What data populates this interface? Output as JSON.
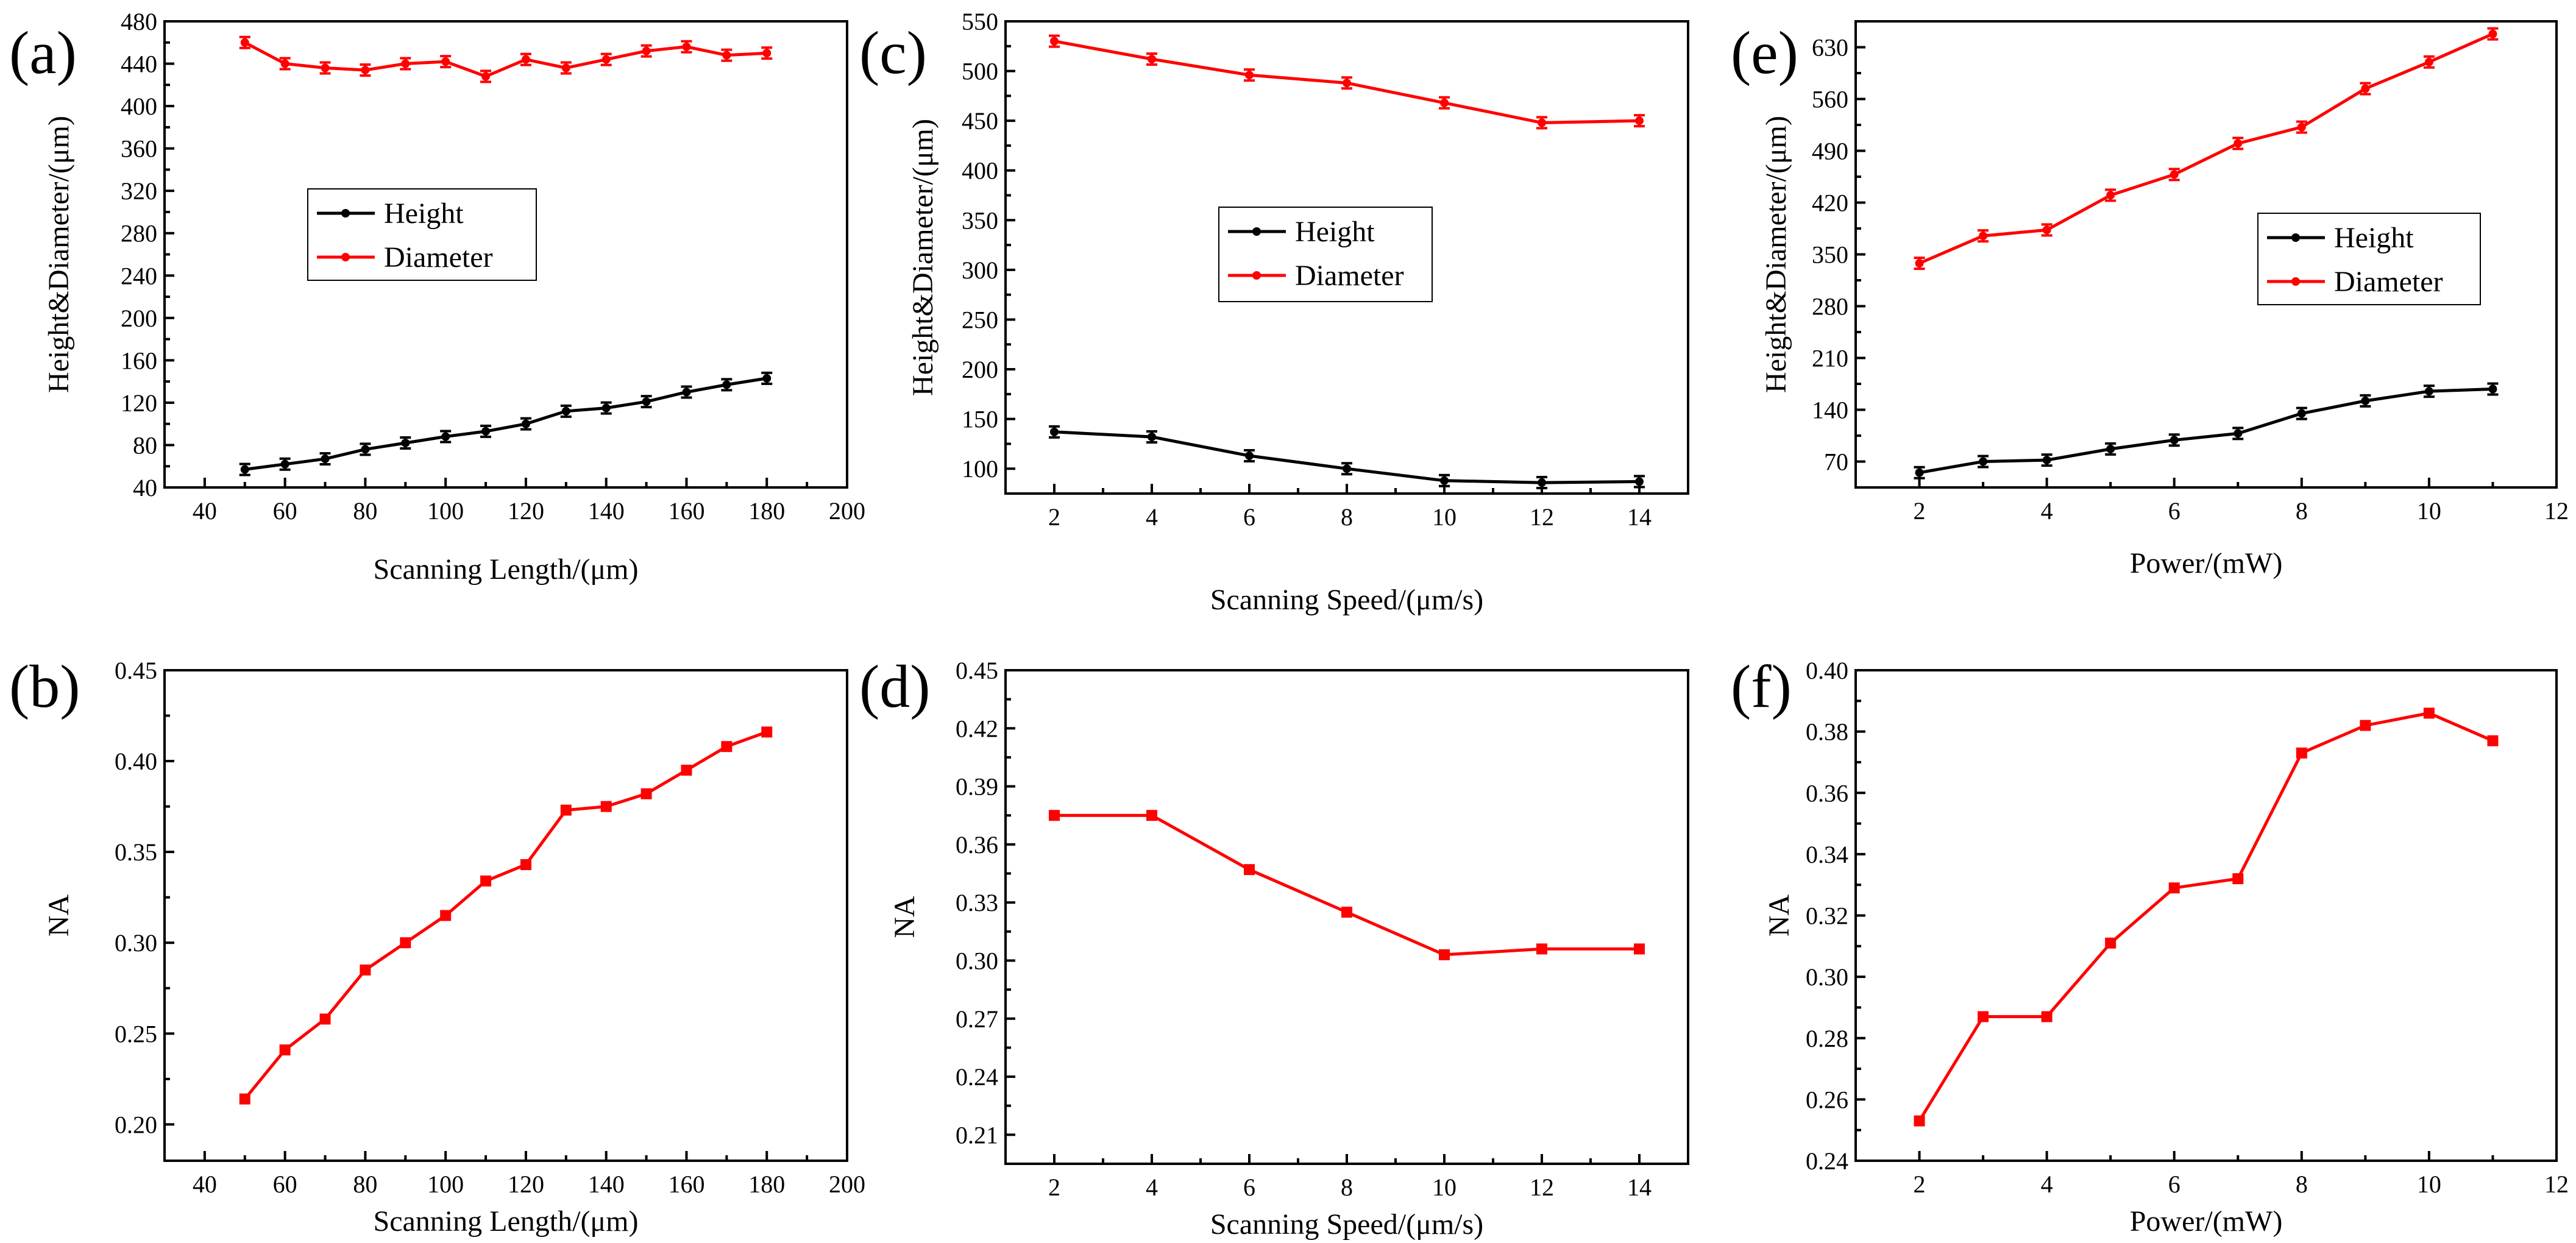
{
  "chart_data": [
    {
      "panel": "(a)",
      "type": "line",
      "xlabel": "Scanning Length/(μm)",
      "ylabel": "Height&Diameter/(μm)",
      "xlim": [
        30,
        200
      ],
      "ylim": [
        40,
        480
      ],
      "xticks": [
        40,
        60,
        80,
        100,
        120,
        140,
        160,
        180,
        200
      ],
      "yticks": [
        40,
        80,
        120,
        160,
        200,
        240,
        280,
        320,
        360,
        400,
        440,
        480
      ],
      "x": [
        50,
        60,
        70,
        80,
        90,
        100,
        110,
        120,
        130,
        140,
        150,
        160,
        170,
        180
      ],
      "series": [
        {
          "name": "Height",
          "color": "#000000",
          "values": [
            57,
            62,
            67,
            76,
            82,
            88,
            93,
            100,
            112,
            115,
            121,
            130,
            137,
            143
          ]
        },
        {
          "name": "Diameter",
          "color": "#ff0000",
          "values": [
            460,
            440,
            436,
            434,
            440,
            442,
            428,
            444,
            436,
            444,
            452,
            456,
            448,
            450
          ]
        }
      ],
      "error_bars": true,
      "legend_position": "middle-left"
    },
    {
      "panel": "(b)",
      "type": "line",
      "xlabel": "Scanning Length/(μm)",
      "ylabel": "NA",
      "xlim": [
        30,
        200
      ],
      "ylim": [
        0.18,
        0.45
      ],
      "xticks": [
        40,
        60,
        80,
        100,
        120,
        140,
        160,
        180,
        200
      ],
      "yticks": [
        0.2,
        0.25,
        0.3,
        0.35,
        0.4,
        0.45
      ],
      "ytick_labels": [
        "0.20",
        "0.25",
        "0.30",
        "0.35",
        "0.40",
        "0.45"
      ],
      "x": [
        50,
        60,
        70,
        80,
        90,
        100,
        110,
        120,
        130,
        140,
        150,
        160,
        170,
        180
      ],
      "series": [
        {
          "name": "NA",
          "color": "#ff0000",
          "values": [
            0.214,
            0.241,
            0.258,
            0.285,
            0.3,
            0.315,
            0.334,
            0.343,
            0.373,
            0.375,
            0.382,
            0.395,
            0.408,
            0.416
          ]
        }
      ],
      "error_bars": false
    },
    {
      "panel": "(c)",
      "type": "line",
      "xlabel": "Scanning Speed/(μm/s)",
      "ylabel": "Height&Diameter/(μm)",
      "xlim": [
        1,
        15
      ],
      "ylim": [
        75,
        550
      ],
      "xticks": [
        2,
        4,
        6,
        8,
        10,
        12,
        14
      ],
      "yticks": [
        100,
        150,
        200,
        250,
        300,
        350,
        400,
        450,
        500,
        550
      ],
      "x": [
        2,
        4,
        6,
        8,
        10,
        12,
        14
      ],
      "series": [
        {
          "name": "Height",
          "color": "#000000",
          "values": [
            137,
            132,
            113,
            100,
            88,
            86,
            87
          ]
        },
        {
          "name": "Diameter",
          "color": "#ff0000",
          "values": [
            530,
            512,
            496,
            488,
            468,
            448,
            450
          ]
        }
      ],
      "error_bars": true,
      "legend_position": "middle-center"
    },
    {
      "panel": "(d)",
      "type": "line",
      "xlabel": "Scanning Speed/(μm/s)",
      "ylabel": "NA",
      "xlim": [
        1,
        15
      ],
      "ylim": [
        0.195,
        0.45
      ],
      "xticks": [
        2,
        4,
        6,
        8,
        10,
        12,
        14
      ],
      "yticks": [
        0.21,
        0.24,
        0.27,
        0.3,
        0.33,
        0.36,
        0.39,
        0.42,
        0.45
      ],
      "ytick_labels": [
        "0.21",
        "0.24",
        "0.27",
        "0.30",
        "0.33",
        "0.36",
        "0.39",
        "0.42",
        "0.45"
      ],
      "x": [
        2,
        4,
        6,
        8,
        10,
        12,
        14
      ],
      "series": [
        {
          "name": "NA",
          "color": "#ff0000",
          "values": [
            0.375,
            0.375,
            0.347,
            0.325,
            0.303,
            0.306,
            0.306
          ]
        }
      ],
      "error_bars": false
    },
    {
      "panel": "(e)",
      "type": "line",
      "xlabel": "Power/(mW)",
      "ylabel": "Height&Diameter/(μm)",
      "xlim": [
        1,
        12
      ],
      "ylim": [
        35,
        665
      ],
      "xticks": [
        2,
        4,
        6,
        8,
        10,
        12
      ],
      "yticks": [
        70,
        140,
        210,
        280,
        350,
        420,
        490,
        560,
        630
      ],
      "x": [
        2,
        3,
        4,
        5,
        6,
        7,
        8,
        9,
        10,
        11
      ],
      "series": [
        {
          "name": "Height",
          "color": "#000000",
          "values": [
            55,
            70,
            72,
            87,
            99,
            108,
            135,
            152,
            165,
            168
          ]
        },
        {
          "name": "Diameter",
          "color": "#ff0000",
          "values": [
            338,
            375,
            383,
            430,
            458,
            500,
            522,
            574,
            610,
            648
          ]
        }
      ],
      "error_bars": true,
      "legend_position": "middle-right"
    },
    {
      "panel": "(f)",
      "type": "line",
      "xlabel": "Power/(mW)",
      "ylabel": "NA",
      "xlim": [
        1,
        12
      ],
      "ylim": [
        0.24,
        0.4
      ],
      "xticks": [
        2,
        4,
        6,
        8,
        10,
        12
      ],
      "yticks": [
        0.24,
        0.26,
        0.28,
        0.3,
        0.32,
        0.34,
        0.36,
        0.38,
        0.4
      ],
      "ytick_labels": [
        "0.24",
        "0.26",
        "0.28",
        "0.30",
        "0.32",
        "0.34",
        "0.36",
        "0.38",
        "0.40"
      ],
      "x": [
        2,
        3,
        4,
        5,
        6,
        7,
        8,
        9,
        10,
        11
      ],
      "series": [
        {
          "name": "NA",
          "color": "#ff0000",
          "values": [
            0.253,
            0.287,
            0.287,
            0.311,
            0.329,
            0.332,
            0.373,
            0.382,
            0.386,
            0.377
          ]
        }
      ],
      "error_bars": false
    }
  ]
}
